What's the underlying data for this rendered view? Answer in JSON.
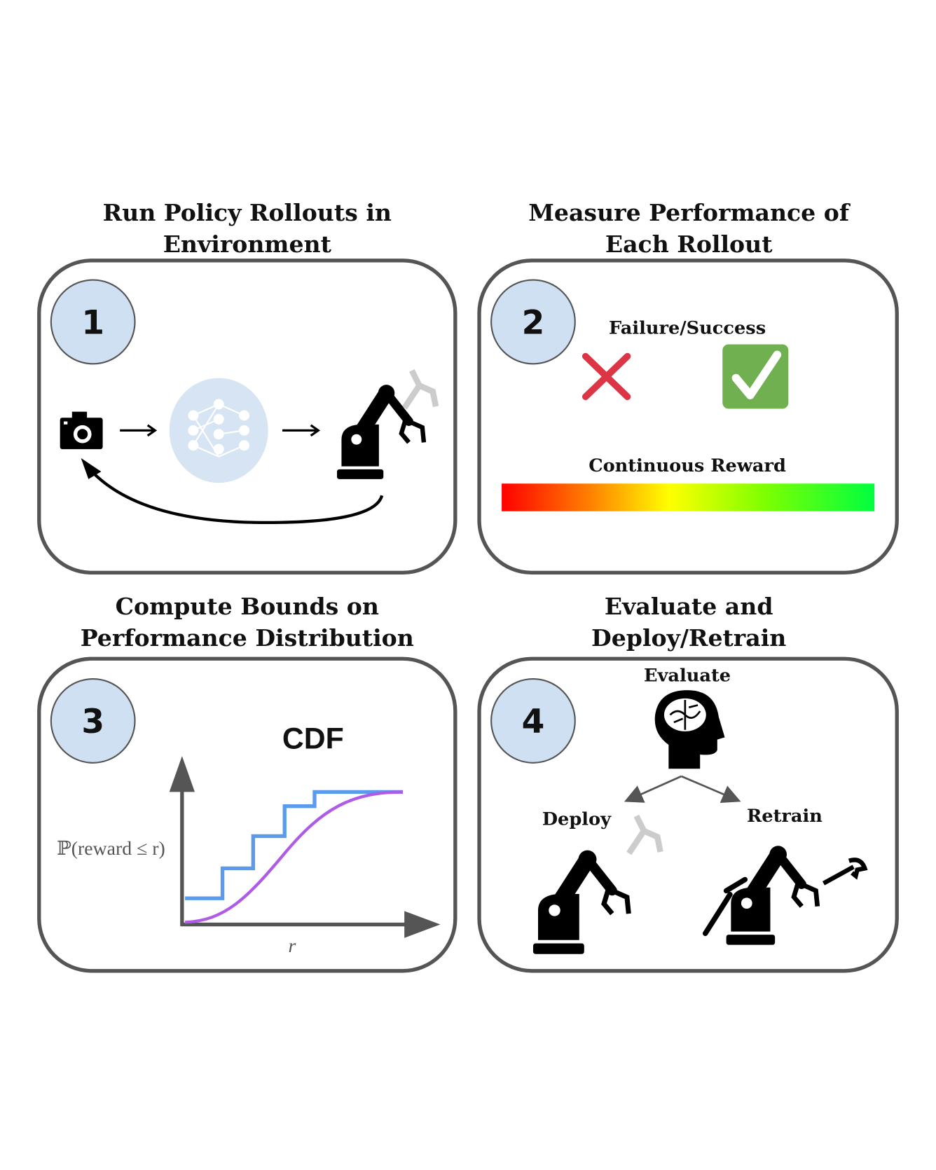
{
  "panels": [
    {
      "step": "1",
      "title_line1": "Run Policy Rollouts in",
      "title_line2": "Environment"
    },
    {
      "step": "2",
      "title_line1": "Measure Performance of",
      "title_line2": "Each Rollout",
      "binary_label": "Failure/Success",
      "continuous_label": "Continuous Reward"
    },
    {
      "step": "3",
      "title_line1": "Compute Bounds on",
      "title_line2": "Performance Distribution",
      "plot_title": "CDF",
      "y_label": "ℙ(reward ≤ r)",
      "x_label": "r"
    },
    {
      "step": "4",
      "title_line1": "Evaluate and",
      "title_line2": "Deploy/Retrain",
      "evaluate_label": "Evaluate",
      "deploy_label": "Deploy",
      "retrain_label": "Retrain"
    }
  ],
  "icons": [
    "camera-icon",
    "neural-network-icon",
    "robot-arm-icon",
    "feedback-arrow-icon",
    "failure-x-icon",
    "success-check-icon",
    "brain-head-icon",
    "wrench-icon",
    "screwdriver-icon"
  ],
  "colors": {
    "badge_fill": "#cfe0f3",
    "box_stroke": "#555555",
    "failure": "#dc3545",
    "success": "#71b050",
    "empirical_cdf": "#5b9bec",
    "true_cdf": "#b05be8",
    "nn_fill": "#d6e4f3",
    "gradient": [
      "#ff0000",
      "#ff8800",
      "#ffff00",
      "#80ff00",
      "#00ff40"
    ]
  }
}
